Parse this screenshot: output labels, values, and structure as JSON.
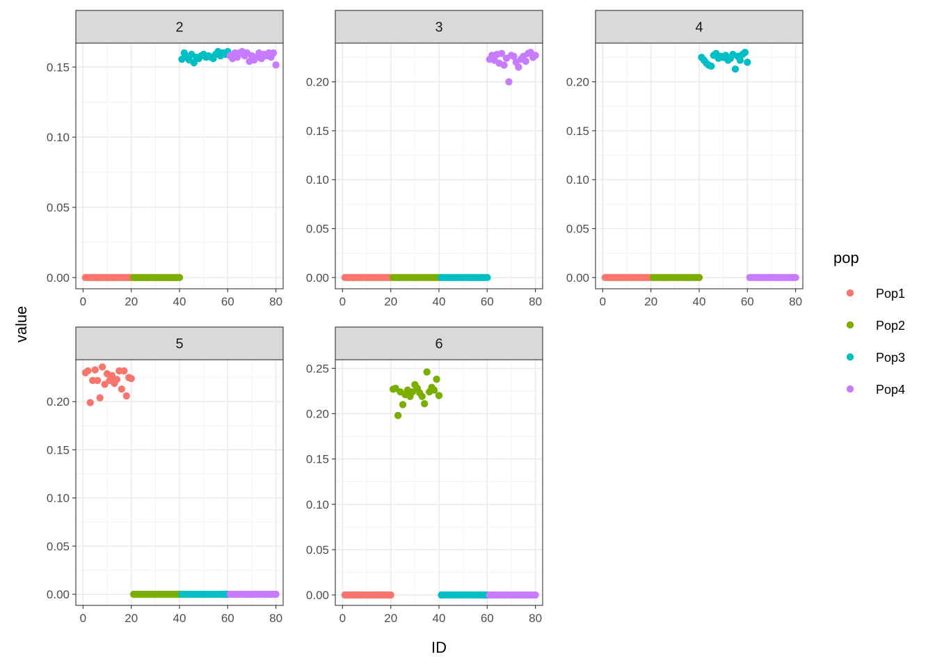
{
  "chart_data": {
    "type": "scatter",
    "facet_variable": "K",
    "xlabel": "ID",
    "ylabel": "value",
    "legend": {
      "title": "pop",
      "position": "right",
      "entries": [
        {
          "name": "Pop1",
          "color": "#F8766D"
        },
        {
          "name": "Pop2",
          "color": "#7CAE00"
        },
        {
          "name": "Pop3",
          "color": "#00BFC4"
        },
        {
          "name": "Pop4",
          "color": "#C77CFF"
        }
      ]
    },
    "grid": true,
    "theme": "bw",
    "xlim": [
      -3,
      83
    ],
    "x_ticks": [
      "0",
      "20",
      "40",
      "60",
      "80"
    ],
    "x_tick_values": [
      0,
      20,
      40,
      60,
      80
    ],
    "panels": [
      {
        "label": "2",
        "ylim": [
          -0.008,
          0.167
        ],
        "y_ticks": [
          "0.00",
          "0.05",
          "0.10",
          "0.15"
        ],
        "y_tick_values": [
          0,
          0.05,
          0.1,
          0.15
        ],
        "zero_pops": [
          "Pop1",
          "Pop2"
        ],
        "clusters": [
          {
            "pop": "Pop3",
            "x": [
              41,
              42,
              43,
              44,
              45,
              46,
              47,
              48,
              49,
              50,
              51,
              52,
              53,
              54,
              55,
              56,
              57,
              58,
              59,
              60
            ],
            "y": [
              0.1555,
              0.16,
              0.157,
              0.155,
              0.159,
              0.153,
              0.157,
              0.156,
              0.158,
              0.159,
              0.157,
              0.158,
              0.157,
              0.156,
              0.159,
              0.161,
              0.158,
              0.16,
              0.159,
              0.161
            ]
          },
          {
            "pop": "Pop4",
            "x": [
              61,
              62,
              63,
              64,
              65,
              66,
              67,
              68,
              69,
              70,
              71,
              72,
              73,
              74,
              75,
              76,
              77,
              78,
              79,
              80
            ],
            "y": [
              0.158,
              0.156,
              0.16,
              0.157,
              0.16,
              0.161,
              0.158,
              0.16,
              0.154,
              0.158,
              0.155,
              0.157,
              0.16,
              0.156,
              0.159,
              0.158,
              0.16,
              0.157,
              0.16,
              0.1515
            ]
          }
        ]
      },
      {
        "label": "3",
        "ylim": [
          -0.0115,
          0.2395
        ],
        "y_ticks": [
          "0.00",
          "0.05",
          "0.10",
          "0.15",
          "0.20"
        ],
        "y_tick_values": [
          0,
          0.05,
          0.1,
          0.15,
          0.2
        ],
        "zero_pops": [
          "Pop1",
          "Pop2",
          "Pop3"
        ],
        "clusters": [
          {
            "pop": "Pop4",
            "x": [
              61,
              62,
              63,
              64,
              65,
              66,
              67,
              68,
              69,
              70,
              71,
              72,
              73,
              74,
              75,
              76,
              77,
              78,
              79,
              80
            ],
            "y": [
              0.223,
              0.227,
              0.222,
              0.228,
              0.219,
              0.229,
              0.217,
              0.224,
              0.2,
              0.227,
              0.226,
              0.22,
              0.215,
              0.223,
              0.226,
              0.221,
              0.229,
              0.23,
              0.225,
              0.227
            ]
          }
        ]
      },
      {
        "label": "4",
        "ylim": [
          -0.0115,
          0.2395
        ],
        "y_ticks": [
          "0.00",
          "0.05",
          "0.10",
          "0.15",
          "0.20"
        ],
        "y_tick_values": [
          0,
          0.05,
          0.1,
          0.15,
          0.2
        ],
        "zero_pops": [
          "Pop1",
          "Pop2",
          "Pop4"
        ],
        "clusters": [
          {
            "pop": "Pop3",
            "x": [
              41,
              42,
              43,
              44,
              45,
              46,
              47,
              48,
              49,
              50,
              51,
              52,
              53,
              54,
              55,
              56,
              57,
              58,
              59,
              60
            ],
            "y": [
              0.225,
              0.222,
              0.219,
              0.217,
              0.216,
              0.227,
              0.229,
              0.224,
              0.226,
              0.225,
              0.227,
              0.222,
              0.224,
              0.228,
              0.213,
              0.226,
              0.222,
              0.228,
              0.23,
              0.22
            ]
          }
        ]
      },
      {
        "label": "5",
        "ylim": [
          -0.0115,
          0.2435
        ],
        "y_ticks": [
          "0.00",
          "0.05",
          "0.10",
          "0.15",
          "0.20"
        ],
        "y_tick_values": [
          0,
          0.05,
          0.1,
          0.15,
          0.2
        ],
        "zero_pops": [
          "Pop2",
          "Pop3",
          "Pop4"
        ],
        "clusters": [
          {
            "pop": "Pop1",
            "x": [
              1,
              2,
              3,
              4,
              5,
              6,
              7,
              8,
              9,
              10,
              11,
              12,
              13,
              14,
              15,
              16,
              17,
              18,
              19,
              20
            ],
            "y": [
              0.23,
              0.232,
              0.199,
              0.222,
              0.233,
              0.222,
              0.204,
              0.236,
              0.218,
              0.229,
              0.222,
              0.227,
              0.219,
              0.223,
              0.232,
              0.213,
              0.232,
              0.206,
              0.225,
              0.224
            ]
          }
        ]
      },
      {
        "label": "6",
        "ylim": [
          -0.0115,
          0.2595
        ],
        "y_ticks": [
          "0.00",
          "0.05",
          "0.10",
          "0.15",
          "0.20",
          "0.25"
        ],
        "y_tick_values": [
          0,
          0.05,
          0.1,
          0.15,
          0.2,
          0.25
        ],
        "zero_pops": [
          "Pop1",
          "Pop3",
          "Pop4"
        ],
        "clusters": [
          {
            "pop": "Pop2",
            "x": [
              21,
              22,
              23,
              24,
              25,
              26,
              27,
              28,
              29,
              30,
              31,
              32,
              33,
              34,
              35,
              36,
              37,
              38,
              39,
              40
            ],
            "y": [
              0.227,
              0.228,
              0.198,
              0.224,
              0.21,
              0.221,
              0.226,
              0.219,
              0.224,
              0.232,
              0.228,
              0.223,
              0.219,
              0.211,
              0.246,
              0.224,
              0.229,
              0.226,
              0.238,
              0.22
            ]
          }
        ]
      }
    ]
  }
}
